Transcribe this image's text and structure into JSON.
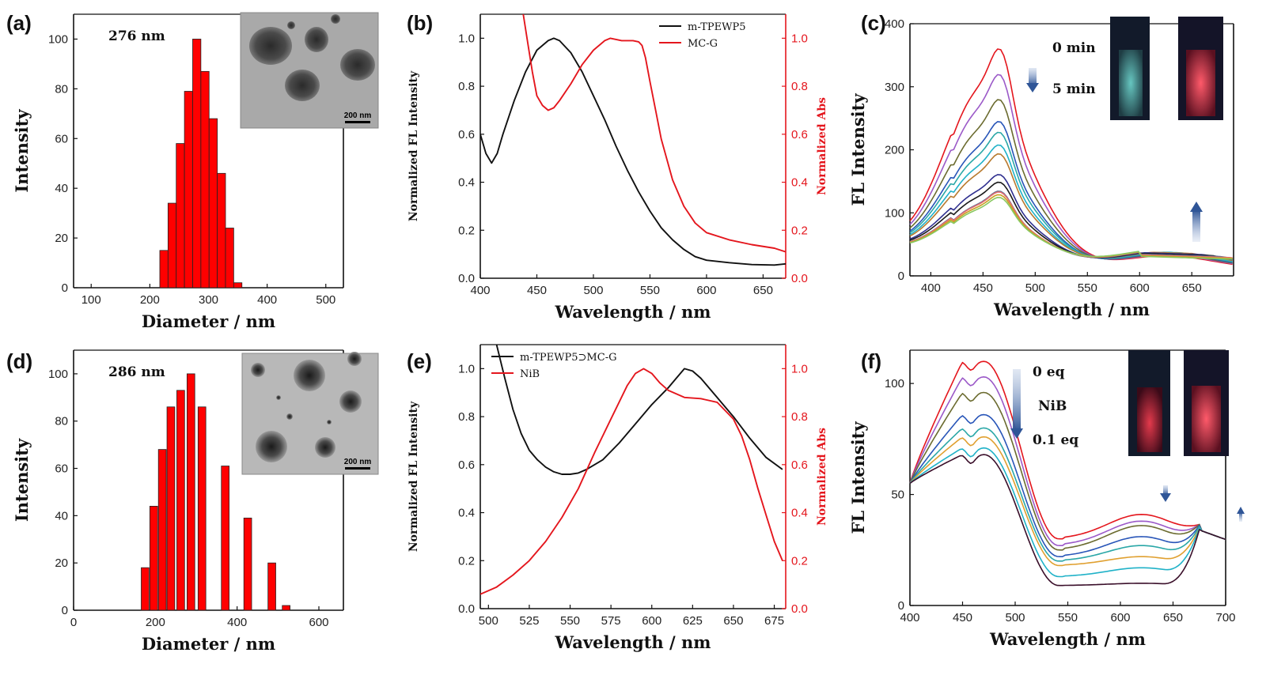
{
  "colors": {
    "bar": "#ff0000",
    "axis": "#111111",
    "black_line": "#111111",
    "red_line": "#e4161d",
    "right_axis": "#e4161d",
    "arrow": "#2f5597",
    "c_series": [
      "#e4161d",
      "#9b59c8",
      "#6b6b2f",
      "#2855b8",
      "#2aa7a7",
      "#20b2c8",
      "#b87a2e",
      "#2f2f8f",
      "#1a1a1a",
      "#5a6b8f",
      "#e87070",
      "#c8a020",
      "#88c860"
    ],
    "f_series": [
      "#e4161d",
      "#9b59c8",
      "#6b6b2f",
      "#2855b8",
      "#2aa7a7",
      "#e0a030",
      "#20b2c8",
      "#3a0f2a"
    ]
  },
  "chart_data": [
    {
      "id": "a",
      "panel_label": "(a)",
      "type": "bar",
      "annotation": "276 nm",
      "xlabel": "Diameter / nm",
      "ylabel": "Intensity",
      "xlim": [
        70,
        530
      ],
      "ylim": [
        0,
        110
      ],
      "xticks": [
        100,
        200,
        300,
        400,
        500
      ],
      "yticks": [
        0,
        20,
        40,
        60,
        80,
        100
      ],
      "bin_width": 14,
      "x": [
        224,
        238,
        252,
        266,
        280,
        294,
        308,
        322,
        336,
        350
      ],
      "values": [
        15,
        34,
        58,
        79,
        100,
        87,
        68,
        46,
        24,
        2
      ],
      "inset": {
        "type": "tem-image",
        "scale_label": "200 nm"
      }
    },
    {
      "id": "b",
      "panel_label": "(b)",
      "type": "line",
      "xlabel": "Wavelength / nm",
      "ylabel": "Normalized FL Intensity",
      "y2label": "Normalized Abs",
      "xlim": [
        400,
        670
      ],
      "ylim": [
        0,
        1.1
      ],
      "y2lim": [
        0,
        1.1
      ],
      "xticks": [
        400,
        450,
        500,
        550,
        600,
        650
      ],
      "yticks": [
        0.0,
        0.2,
        0.4,
        0.6,
        0.8,
        1.0
      ],
      "y2ticks": [
        0.0,
        0.2,
        0.4,
        0.6,
        0.8,
        1.0
      ],
      "legend_position": "top-right",
      "series": [
        {
          "name": "m-TPEWP5",
          "axis": "left",
          "color": "#111111",
          "x": [
            400,
            405,
            410,
            415,
            420,
            430,
            440,
            450,
            460,
            465,
            470,
            480,
            490,
            500,
            510,
            520,
            530,
            540,
            550,
            560,
            570,
            580,
            590,
            600,
            620,
            640,
            660,
            670
          ],
          "y": [
            0.6,
            0.52,
            0.48,
            0.52,
            0.6,
            0.74,
            0.86,
            0.95,
            0.99,
            1.0,
            0.99,
            0.94,
            0.86,
            0.76,
            0.66,
            0.55,
            0.45,
            0.36,
            0.28,
            0.21,
            0.16,
            0.12,
            0.09,
            0.075,
            0.065,
            0.057,
            0.055,
            0.06
          ]
        },
        {
          "name": "MC-G",
          "axis": "right",
          "color": "#e4161d",
          "x": [
            438,
            442,
            446,
            450,
            455,
            460,
            465,
            470,
            480,
            490,
            500,
            510,
            515,
            520,
            525,
            530,
            535,
            540,
            543,
            546,
            550,
            555,
            560,
            570,
            580,
            590,
            600,
            620,
            640,
            660,
            670
          ],
          "y": [
            1.1,
            0.98,
            0.86,
            0.76,
            0.72,
            0.7,
            0.71,
            0.74,
            0.81,
            0.89,
            0.95,
            0.99,
            1.0,
            0.995,
            0.99,
            0.99,
            0.99,
            0.985,
            0.97,
            0.92,
            0.82,
            0.7,
            0.58,
            0.41,
            0.3,
            0.23,
            0.19,
            0.16,
            0.14,
            0.125,
            0.11
          ]
        }
      ]
    },
    {
      "id": "c",
      "panel_label": "(c)",
      "type": "line",
      "xlabel": "Wavelength / nm",
      "ylabel": "FL Intensity",
      "xlim": [
        380,
        690
      ],
      "ylim": [
        0,
        400
      ],
      "xticks": [
        400,
        450,
        500,
        550,
        600,
        650
      ],
      "yticks": [
        0,
        100,
        200,
        300,
        400
      ],
      "annotations": [
        "0 min",
        "5 min"
      ],
      "peaks": [
        355,
        313,
        272,
        236,
        218,
        197,
        182,
        148,
        135,
        120,
        118,
        113,
        108
      ],
      "inset": {
        "type": "cuvette-photos"
      }
    },
    {
      "id": "d",
      "panel_label": "(d)",
      "type": "bar",
      "annotation": "286 nm",
      "xlabel": "Diameter / nm",
      "ylabel": "Intensity",
      "xlim": [
        0,
        660
      ],
      "ylim": [
        0,
        110
      ],
      "xticks": [
        0,
        200,
        400,
        600
      ],
      "yticks": [
        0,
        20,
        40,
        60,
        80,
        100
      ],
      "bin_width": 19,
      "x": [
        175,
        196,
        217,
        238,
        262,
        287,
        314,
        341,
        371,
        399,
        426,
        457,
        485,
        520
      ],
      "values": [
        18,
        44,
        68,
        86,
        93,
        100,
        86,
        0,
        61,
        0,
        39,
        0,
        20,
        2
      ],
      "inset": {
        "type": "tem-image",
        "scale_label": "200 nm"
      }
    },
    {
      "id": "e",
      "panel_label": "(e)",
      "type": "line",
      "xlabel": "Wavelength / nm",
      "ylabel": "Normalized FL Intensity",
      "y2label": "Normalized Abs",
      "xlim": [
        495,
        682
      ],
      "ylim": [
        0,
        1.1
      ],
      "y2lim": [
        0,
        1.1
      ],
      "xticks": [
        500,
        525,
        550,
        575,
        600,
        625,
        650,
        675
      ],
      "yticks": [
        0.0,
        0.2,
        0.4,
        0.6,
        0.8,
        1.0
      ],
      "y2ticks": [
        0.0,
        0.2,
        0.4,
        0.6,
        0.8,
        1.0
      ],
      "legend_position": "top-left",
      "series": [
        {
          "name": "m-TPEWP5⊃MC-G",
          "axis": "left",
          "color": "#111111",
          "x": [
            505,
            510,
            515,
            520,
            525,
            530,
            535,
            540,
            545,
            550,
            555,
            560,
            570,
            580,
            590,
            600,
            610,
            615,
            620,
            625,
            630,
            640,
            650,
            660,
            670,
            680
          ],
          "y": [
            1.1,
            0.96,
            0.83,
            0.73,
            0.66,
            0.62,
            0.59,
            0.57,
            0.56,
            0.56,
            0.565,
            0.58,
            0.62,
            0.69,
            0.77,
            0.85,
            0.92,
            0.96,
            1.0,
            0.99,
            0.96,
            0.88,
            0.8,
            0.71,
            0.63,
            0.58
          ]
        },
        {
          "name": "NiB",
          "axis": "right",
          "color": "#e4161d",
          "x": [
            495,
            505,
            515,
            525,
            535,
            545,
            555,
            565,
            575,
            585,
            590,
            595,
            600,
            605,
            610,
            620,
            630,
            640,
            650,
            655,
            660,
            665,
            670,
            675,
            680
          ],
          "y": [
            0.06,
            0.09,
            0.14,
            0.2,
            0.28,
            0.38,
            0.5,
            0.65,
            0.79,
            0.93,
            0.98,
            1.0,
            0.98,
            0.94,
            0.91,
            0.88,
            0.875,
            0.86,
            0.79,
            0.72,
            0.62,
            0.5,
            0.39,
            0.28,
            0.2
          ]
        }
      ]
    },
    {
      "id": "f",
      "panel_label": "(f)",
      "type": "line",
      "xlabel": "Wavelength / nm",
      "ylabel": "FL Intensity",
      "xlim": [
        400,
        700
      ],
      "ylim": [
        0,
        115
      ],
      "xticks": [
        400,
        450,
        500,
        550,
        600,
        650,
        700
      ],
      "yticks": [
        0,
        50,
        100
      ],
      "annotations": [
        "0 eq",
        "NiB",
        "0.1 eq"
      ],
      "peaks": [
        110,
        103,
        96,
        86,
        80,
        76,
        71,
        68
      ],
      "valleys": [
        30,
        27,
        25,
        22,
        20,
        18,
        13,
        9
      ],
      "shoulders": [
        41,
        38,
        36,
        31,
        27,
        22,
        17,
        10
      ],
      "inset": {
        "type": "cuvette-photos"
      }
    }
  ]
}
